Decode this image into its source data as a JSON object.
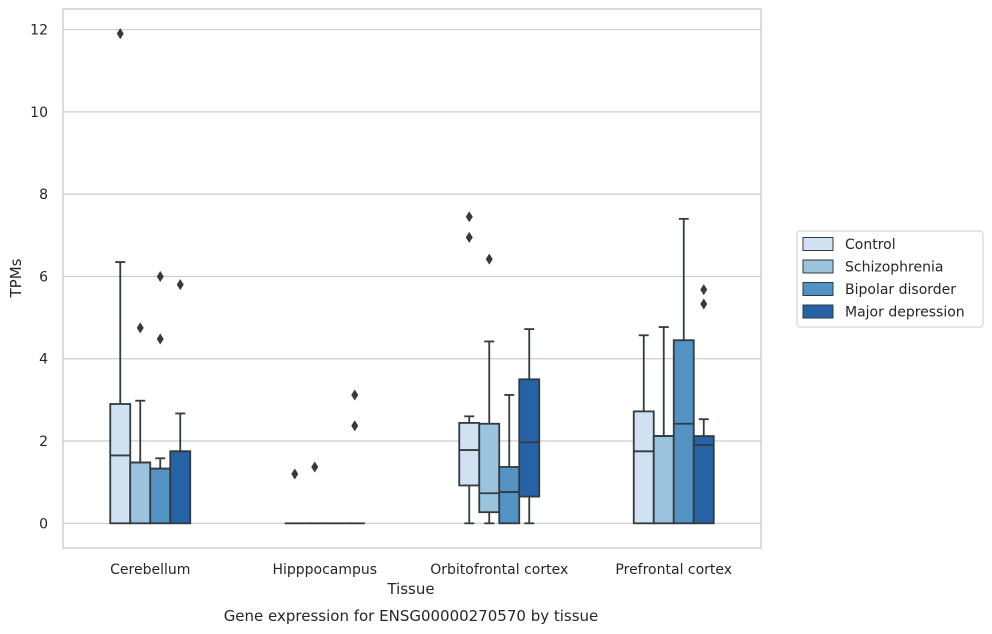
{
  "caption": "Gene expression for ENSG00000270570 by tissue",
  "chart_data": {
    "type": "boxplot",
    "xlabel": "Tissue",
    "ylabel": "TPMs",
    "ylim": [
      -0.6,
      12.5
    ],
    "yticks": [
      0,
      2,
      4,
      6,
      8,
      10,
      12
    ],
    "grid": "horizontal",
    "legend_position": "right",
    "categories": [
      "Cerebellum",
      "Hipppocampus",
      "Orbitofrontal cortex",
      "Prefrontal cortex"
    ],
    "series": [
      {
        "name": "Control",
        "color": "#d0e1f1",
        "boxes": [
          {
            "whislo": 0,
            "q1": 0,
            "med": 1.65,
            "q3": 2.9,
            "whishi": 6.35,
            "fliers": [
              11.9
            ]
          },
          {
            "whislo": 0,
            "q1": 0,
            "med": 0,
            "q3": 0,
            "whishi": 0,
            "fliers": [
              1.2
            ]
          },
          {
            "whislo": 0,
            "q1": 0.92,
            "med": 1.78,
            "q3": 2.44,
            "whishi": 2.6,
            "fliers": [
              6.95,
              7.45
            ]
          },
          {
            "whislo": 0,
            "q1": 0,
            "med": 1.75,
            "q3": 2.72,
            "whishi": 4.57,
            "fliers": []
          }
        ]
      },
      {
        "name": "Schizophrenia",
        "color": "#9ac3dd",
        "boxes": [
          {
            "whislo": 0,
            "q1": 0,
            "med": 1.48,
            "q3": 1.48,
            "whishi": 2.98,
            "fliers": [
              4.75
            ]
          },
          {
            "whislo": 0,
            "q1": 0,
            "med": 0,
            "q3": 0,
            "whishi": 0,
            "fliers": [
              1.37
            ]
          },
          {
            "whislo": 0,
            "q1": 0.27,
            "med": 0.73,
            "q3": 2.42,
            "whishi": 4.42,
            "fliers": [
              6.42
            ]
          },
          {
            "whislo": 0,
            "q1": 0,
            "med": 2.12,
            "q3": 2.12,
            "whishi": 4.77,
            "fliers": []
          }
        ]
      },
      {
        "name": "Bipolar disorder",
        "color": "#5293c3",
        "boxes": [
          {
            "whislo": 0,
            "q1": 0,
            "med": 1.33,
            "q3": 1.33,
            "whishi": 1.58,
            "fliers": [
              4.48,
              6.0
            ]
          },
          {
            "whislo": 0,
            "q1": 0,
            "med": 0,
            "q3": 0,
            "whishi": 0,
            "fliers": []
          },
          {
            "whislo": 0,
            "q1": 0,
            "med": 0.76,
            "q3": 1.37,
            "whishi": 3.12,
            "fliers": []
          },
          {
            "whislo": 0,
            "q1": 0,
            "med": 2.42,
            "q3": 4.45,
            "whishi": 7.4,
            "fliers": []
          }
        ]
      },
      {
        "name": "Major depression",
        "color": "#2563a6",
        "boxes": [
          {
            "whislo": 0,
            "q1": 0,
            "med": 1.75,
            "q3": 1.75,
            "whishi": 2.67,
            "fliers": [
              5.8
            ]
          },
          {
            "whislo": 0,
            "q1": 0,
            "med": 0,
            "q3": 0,
            "whishi": 0,
            "fliers": [
              2.37,
              3.12
            ]
          },
          {
            "whislo": 0,
            "q1": 0.65,
            "med": 1.97,
            "q3": 3.5,
            "whishi": 4.72,
            "fliers": []
          },
          {
            "whislo": 0,
            "q1": 0,
            "med": 1.9,
            "q3": 2.12,
            "whishi": 2.53,
            "fliers": [
              5.33,
              5.68
            ]
          }
        ]
      }
    ]
  }
}
